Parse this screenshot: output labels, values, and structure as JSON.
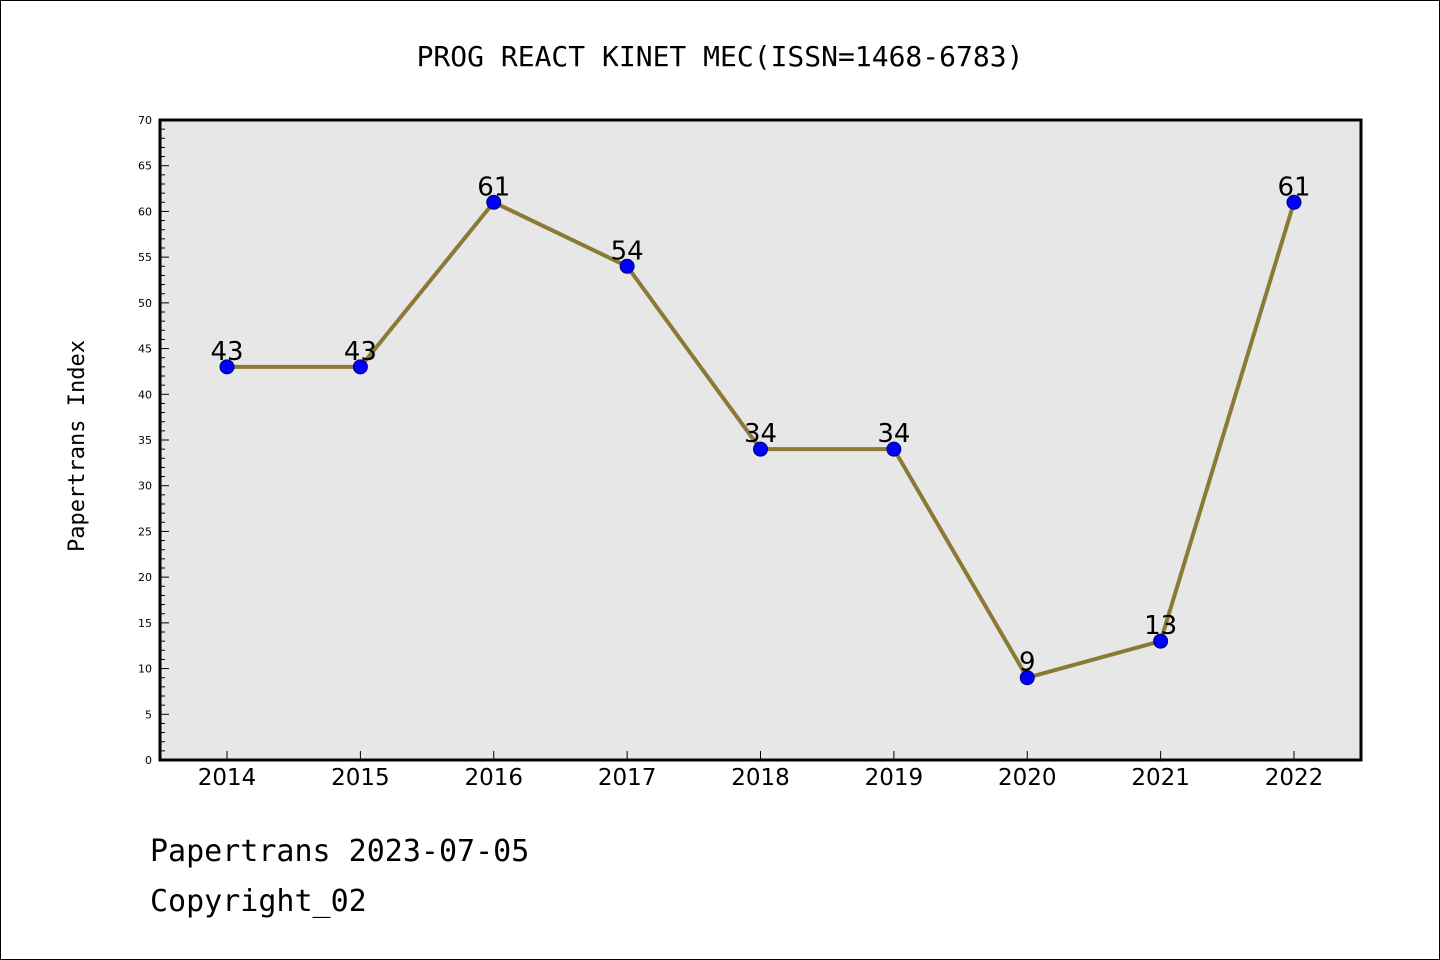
{
  "chart_data": {
    "type": "line",
    "title": "PROG REACT KINET MEC(ISSN=1468-6783)",
    "xlabel": "",
    "ylabel": "Papertrans Index",
    "categories": [
      "2014",
      "2015",
      "2016",
      "2017",
      "2018",
      "2019",
      "2020",
      "2021",
      "2022"
    ],
    "series": [
      {
        "values": [
          43,
          43,
          61,
          54,
          34,
          34,
          9,
          13,
          61
        ]
      }
    ],
    "ylim": [
      0,
      70
    ],
    "yticks": [
      0,
      5,
      10,
      15,
      20,
      25,
      30,
      35,
      40,
      45,
      50,
      55,
      60,
      65,
      70
    ],
    "grid": false,
    "data_labels": true,
    "colors": {
      "line": "#8b7a35",
      "marker": "#0000ff",
      "plot_background": "#e7e7e7"
    }
  },
  "footer": {
    "line1": "Papertrans 2023-07-05",
    "line2": "Copyright_02"
  }
}
